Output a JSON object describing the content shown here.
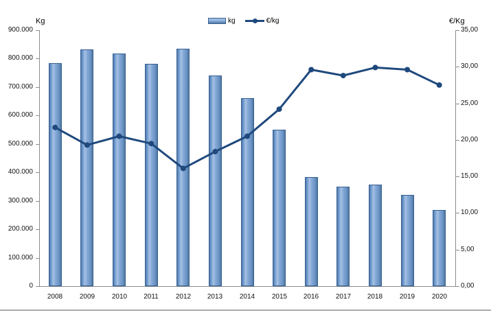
{
  "axis_left": {
    "title": "Kg",
    "tick_labels": [
      "900.000",
      "800.000",
      "700.000",
      "600.000",
      "500.000",
      "400.000",
      "300.000",
      "200.000",
      "100.000",
      "0"
    ],
    "max": 900000,
    "min": 0
  },
  "axis_right": {
    "title": "€/Kg",
    "tick_labels": [
      "35,00",
      "30,00",
      "25,00",
      "20,00",
      "15,00",
      "10,00",
      "5,00",
      "0,00"
    ],
    "max": 35,
    "min": 0
  },
  "legend": {
    "items": [
      {
        "label": "kg",
        "type": "bar"
      },
      {
        "label": "€/kg",
        "type": "line"
      }
    ]
  },
  "chart_data": {
    "type": "bar",
    "subtype": "bar-and-line-dual-axis",
    "categories": [
      "2008",
      "2009",
      "2010",
      "2011",
      "2012",
      "2013",
      "2014",
      "2015",
      "2016",
      "2017",
      "2018",
      "2019",
      "2020"
    ],
    "series": [
      {
        "name": "kg",
        "type": "bar",
        "axis": "left",
        "values": [
          785000,
          833000,
          818000,
          782000,
          835000,
          740000,
          662000,
          551000,
          383000,
          350000,
          356000,
          321000,
          267000
        ]
      },
      {
        "name": "€/kg",
        "type": "line",
        "axis": "right",
        "values": [
          21.7,
          19.3,
          20.5,
          19.5,
          16.1,
          18.4,
          20.5,
          24.2,
          29.6,
          28.8,
          29.9,
          29.6,
          27.5
        ]
      }
    ],
    "title": "",
    "xlabel": "",
    "ylabel_left": "Kg",
    "ylabel_right": "€/Kg",
    "left_ylim": [
      0,
      900000
    ],
    "right_ylim": [
      0,
      35
    ],
    "grid": "off",
    "legend_position": "top-center",
    "colors": {
      "bar_fill": "#6f9acc",
      "bar_highlight": "#a6c1e4",
      "bar_border": "#365f91",
      "line": "#1f497d",
      "axis": "#8c8c8c",
      "text": "#111111"
    }
  }
}
